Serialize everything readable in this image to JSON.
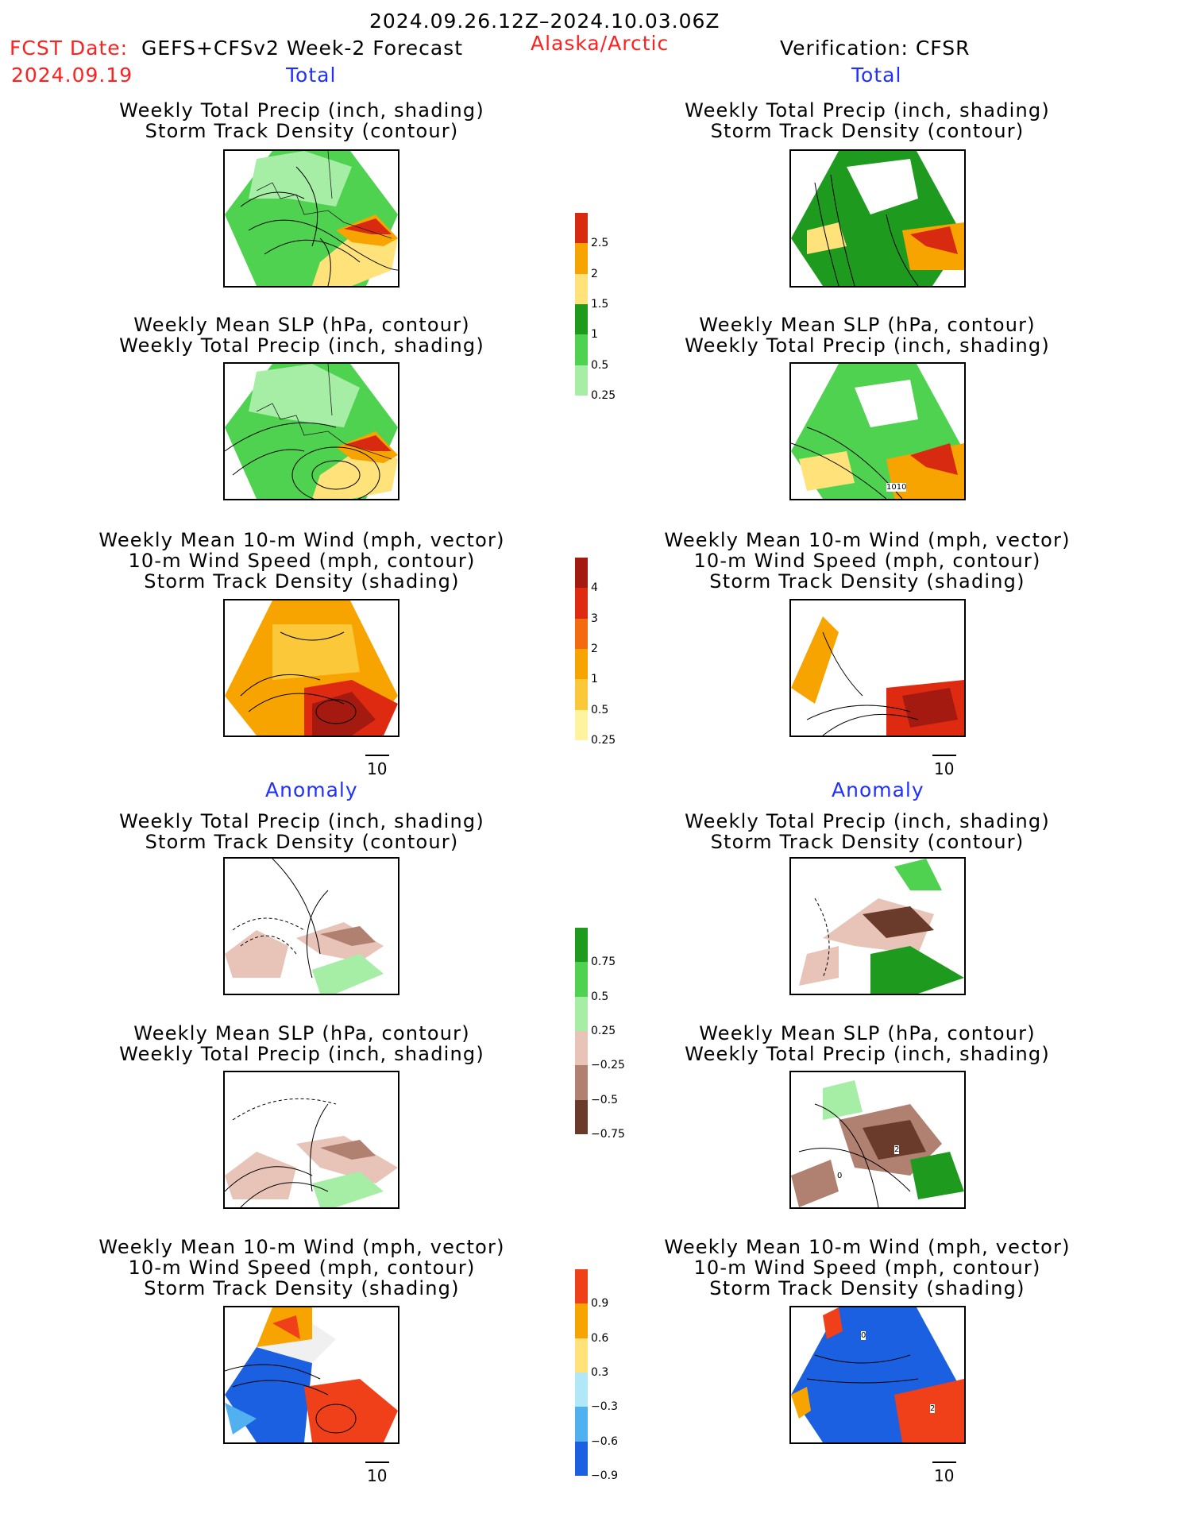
{
  "header": {
    "period": "2024.09.26.12Z–2024.10.03.06Z",
    "fcst_label": "FCST Date:",
    "fcst_model": "GEFS+CFSv2 Week-2 Forecast",
    "fcst_date": "2024.09.19",
    "region": "Alaska/Arctic",
    "verification": "Verification: CFSR"
  },
  "sections": {
    "total": "Total",
    "anomaly": "Anomaly"
  },
  "captions": {
    "precip_storm": [
      "Weekly Total Precip (inch, shading)",
      "Storm Track Density (contour)"
    ],
    "slp_precip": [
      "Weekly Mean SLP (hPa, contour)",
      "Weekly Total Precip (inch, shading)"
    ],
    "wind_storm": [
      "Weekly Mean 10-m Wind (mph, vector)",
      "10-m Wind Speed (mph, contour)",
      "Storm Track Density (shading)"
    ]
  },
  "vector_key": "10",
  "panel_labels": {
    "slp_1010": "1010",
    "storm_2": "2",
    "anom_0": "0",
    "anom_2": "2"
  },
  "colorbars": {
    "precip_total": {
      "ticks": [
        "2.5",
        "2",
        "1.5",
        "1",
        "0.5",
        "0.25"
      ],
      "colors": [
        "#d72a10",
        "#f7a400",
        "#ffe27a",
        "#1e9b1e",
        "#4fd24f",
        "#a6eea6"
      ]
    },
    "storm_total": {
      "ticks": [
        "4",
        "3",
        "2",
        "1",
        "0.5",
        "0.25"
      ],
      "colors": [
        "#a51a10",
        "#de2a10",
        "#f46a10",
        "#f7a400",
        "#fbc83a",
        "#fff3a0"
      ]
    },
    "precip_anom": {
      "ticks": [
        "0.75",
        "0.5",
        "0.25",
        "−0.25",
        "−0.5",
        "−0.75"
      ],
      "colors": [
        "#1e9b1e",
        "#4fd24f",
        "#a6eea6",
        "#e8c3b8",
        "#b08070",
        "#6a3a2a"
      ]
    },
    "storm_anom": {
      "ticks": [
        "0.9",
        "0.6",
        "0.3",
        "−0.3",
        "−0.6",
        "−0.9"
      ],
      "colors": [
        "#f0401a",
        "#f7a400",
        "#ffe27a",
        "#b0e8f8",
        "#50b0f0",
        "#1a60e0"
      ]
    }
  }
}
